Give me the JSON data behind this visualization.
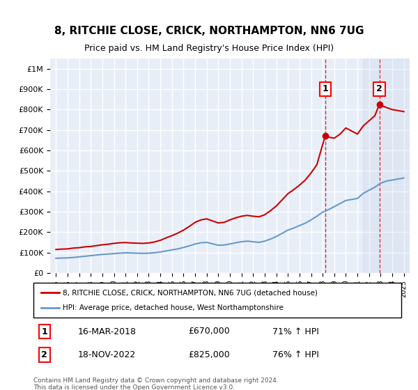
{
  "title": "8, RITCHIE CLOSE, CRICK, NORTHAMPTON, NN6 7UG",
  "subtitle": "Price paid vs. HM Land Registry's House Price Index (HPI)",
  "background_color": "#ffffff",
  "plot_bg_color": "#e8eef8",
  "grid_color": "#ffffff",
  "ylabel_color": "#000000",
  "red_line_color": "#cc0000",
  "blue_line_color": "#6699cc",
  "marker1_date_x": 2018.21,
  "marker1_y": 670000,
  "marker2_date_x": 2022.89,
  "marker2_y": 825000,
  "annotation1_label": "1",
  "annotation2_label": "2",
  "legend_line1": "8, RITCHIE CLOSE, CRICK, NORTHAMPTON, NN6 7UG (detached house)",
  "legend_line2": "HPI: Average price, detached house, West Northamptonshire",
  "table_row1_num": "1",
  "table_row1_date": "16-MAR-2018",
  "table_row1_price": "£670,000",
  "table_row1_hpi": "71% ↑ HPI",
  "table_row2_num": "2",
  "table_row2_date": "18-NOV-2022",
  "table_row2_price": "£825,000",
  "table_row2_hpi": "76% ↑ HPI",
  "footer": "Contains HM Land Registry data © Crown copyright and database right 2024.\nThis data is licensed under the Open Government Licence v3.0.",
  "ylim": [
    0,
    1050000
  ],
  "xlim_start": 1994.5,
  "xlim_end": 2025.5,
  "yticks": [
    0,
    100000,
    200000,
    300000,
    400000,
    500000,
    600000,
    700000,
    800000,
    900000,
    1000000
  ],
  "ytick_labels": [
    "£0",
    "£100K",
    "£200K",
    "£300K",
    "£400K",
    "£500K",
    "£600K",
    "£700K",
    "£800K",
    "£900K",
    "£1M"
  ],
  "xticks": [
    1995,
    1996,
    1997,
    1998,
    1999,
    2000,
    2001,
    2002,
    2003,
    2004,
    2005,
    2006,
    2007,
    2008,
    2009,
    2010,
    2011,
    2012,
    2013,
    2014,
    2015,
    2016,
    2017,
    2018,
    2019,
    2020,
    2021,
    2022,
    2023,
    2024,
    2025
  ],
  "red_x": [
    1995.0,
    1995.5,
    1996.0,
    1996.5,
    1997.0,
    1997.5,
    1998.0,
    1998.5,
    1999.0,
    1999.5,
    2000.0,
    2000.5,
    2001.0,
    2001.5,
    2002.0,
    2002.5,
    2003.0,
    2003.5,
    2004.0,
    2004.5,
    2005.0,
    2005.5,
    2006.0,
    2006.5,
    2007.0,
    2007.5,
    2008.0,
    2008.5,
    2009.0,
    2009.5,
    2010.0,
    2010.5,
    2011.0,
    2011.5,
    2012.0,
    2012.5,
    2013.0,
    2013.5,
    2014.0,
    2014.5,
    2015.0,
    2015.5,
    2016.0,
    2016.5,
    2017.0,
    2017.5,
    2018.21,
    2018.5,
    2019.0,
    2019.5,
    2020.0,
    2020.5,
    2021.0,
    2021.5,
    2022.0,
    2022.5,
    2022.89,
    2023.0,
    2023.5,
    2024.0,
    2024.5,
    2025.0
  ],
  "red_y": [
    115000,
    117000,
    118000,
    122000,
    124000,
    128000,
    130000,
    134000,
    138000,
    141000,
    145000,
    148000,
    149000,
    147000,
    146000,
    145000,
    147000,
    152000,
    160000,
    172000,
    183000,
    195000,
    210000,
    228000,
    248000,
    260000,
    265000,
    255000,
    245000,
    248000,
    260000,
    270000,
    278000,
    282000,
    278000,
    275000,
    285000,
    305000,
    328000,
    358000,
    388000,
    408000,
    430000,
    455000,
    490000,
    530000,
    670000,
    665000,
    660000,
    680000,
    710000,
    695000,
    680000,
    720000,
    745000,
    770000,
    825000,
    820000,
    810000,
    800000,
    795000,
    790000
  ],
  "blue_x": [
    1995.0,
    1995.5,
    1996.0,
    1996.5,
    1997.0,
    1997.5,
    1998.0,
    1998.5,
    1999.0,
    1999.5,
    2000.0,
    2000.5,
    2001.0,
    2001.5,
    2002.0,
    2002.5,
    2003.0,
    2003.5,
    2004.0,
    2004.5,
    2005.0,
    2005.5,
    2006.0,
    2006.5,
    2007.0,
    2007.5,
    2008.0,
    2008.5,
    2009.0,
    2009.5,
    2010.0,
    2010.5,
    2011.0,
    2011.5,
    2012.0,
    2012.5,
    2013.0,
    2013.5,
    2014.0,
    2014.5,
    2015.0,
    2015.5,
    2016.0,
    2016.5,
    2017.0,
    2017.5,
    2018.0,
    2018.5,
    2019.0,
    2019.5,
    2020.0,
    2020.5,
    2021.0,
    2021.5,
    2022.0,
    2022.5,
    2023.0,
    2023.5,
    2024.0,
    2024.5,
    2025.0
  ],
  "blue_y": [
    72000,
    73000,
    74000,
    76000,
    79000,
    82000,
    85000,
    88000,
    91000,
    93000,
    95000,
    97000,
    99000,
    98000,
    97000,
    96000,
    97000,
    99000,
    103000,
    108000,
    113000,
    118000,
    125000,
    133000,
    142000,
    148000,
    150000,
    143000,
    136000,
    137000,
    142000,
    148000,
    153000,
    156000,
    153000,
    150000,
    156000,
    166000,
    179000,
    194000,
    210000,
    220000,
    232000,
    244000,
    260000,
    278000,
    298000,
    310000,
    325000,
    340000,
    355000,
    360000,
    365000,
    390000,
    405000,
    420000,
    440000,
    450000,
    455000,
    460000,
    465000
  ]
}
